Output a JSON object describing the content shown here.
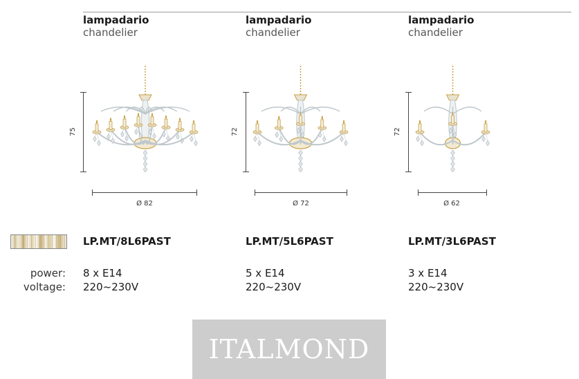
{
  "labels": {
    "power": "power:",
    "voltage": "voltage:"
  },
  "products": [
    {
      "title": "lampadario",
      "subtitle": "chandelier",
      "height": "75",
      "diameter": "Ø 82",
      "code": "LP.MT/8L6PAST",
      "power": "8 x E14",
      "voltage": "220~230V",
      "arms": 8
    },
    {
      "title": "lampadario",
      "subtitle": "chandelier",
      "height": "72",
      "diameter": "Ø 72",
      "code": "LP.MT/5L6PAST",
      "power": "5 x E14",
      "voltage": "220~230V",
      "arms": 5
    },
    {
      "title": "lampadario",
      "subtitle": "chandelier",
      "height": "72",
      "diameter": "Ø 62",
      "code": "LP.MT/3L6PAST",
      "power": "3 x E14",
      "voltage": "220~230V",
      "arms": 3
    }
  ],
  "brand": "ITALMOND",
  "colors": {
    "gold": "#c9a24a",
    "glass": "#bfc8cc",
    "ink": "#1a1a1a",
    "logo_bg": "#cdcdcd"
  }
}
